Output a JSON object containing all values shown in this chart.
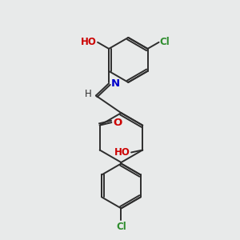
{
  "background_color": "#e8eaea",
  "bond_color": "#2d2d2d",
  "atom_colors": {
    "N": "#0000cc",
    "O": "#cc0000",
    "Cl": "#2d8c2d",
    "H": "#2d2d2d"
  },
  "font_size": 8.5,
  "figsize": [
    3.0,
    3.0
  ],
  "dpi": 100
}
